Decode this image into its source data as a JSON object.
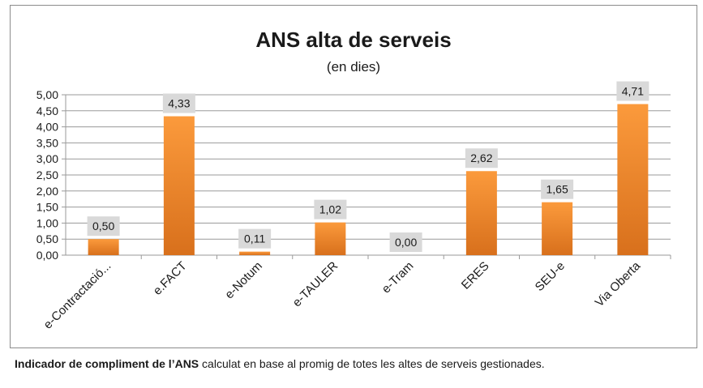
{
  "chart_data": {
    "type": "bar",
    "title": "ANS alta de serveis",
    "subtitle": "(en dies)",
    "categories": [
      "e-Contractació...",
      "e.FACT",
      "e-Notum",
      "e-TAULER",
      "e-Tram",
      "ERES",
      "SEU-e",
      "Via Oberta"
    ],
    "values": [
      0.5,
      4.33,
      0.11,
      1.02,
      0.0,
      2.62,
      1.65,
      4.71
    ],
    "value_labels": [
      "0,50",
      "4,33",
      "0,11",
      "1,02",
      "0,00",
      "2,62",
      "1,65",
      "4,71"
    ],
    "ylim": [
      0,
      5
    ],
    "yticks": [
      0,
      0.5,
      1,
      1.5,
      2,
      2.5,
      3,
      3.5,
      4,
      4.5,
      5
    ],
    "ytick_labels": [
      "0,00",
      "0,50",
      "1,00",
      "1,50",
      "2,00",
      "2,50",
      "3,00",
      "3,50",
      "4,00",
      "4,50",
      "5,00"
    ],
    "xlabel": "",
    "ylabel": "",
    "grid": true,
    "legend": "none",
    "colors": {
      "bar_top": "#fb9a3c",
      "bar_bottom": "#d8701c",
      "label_bg": "#d9d9d9",
      "grid": "#9a9a9a"
    }
  },
  "caption": {
    "bold": "Indicador de compliment de l’ANS",
    "rest": " calculat en base al promig de totes les altes de serveis gestionades."
  }
}
